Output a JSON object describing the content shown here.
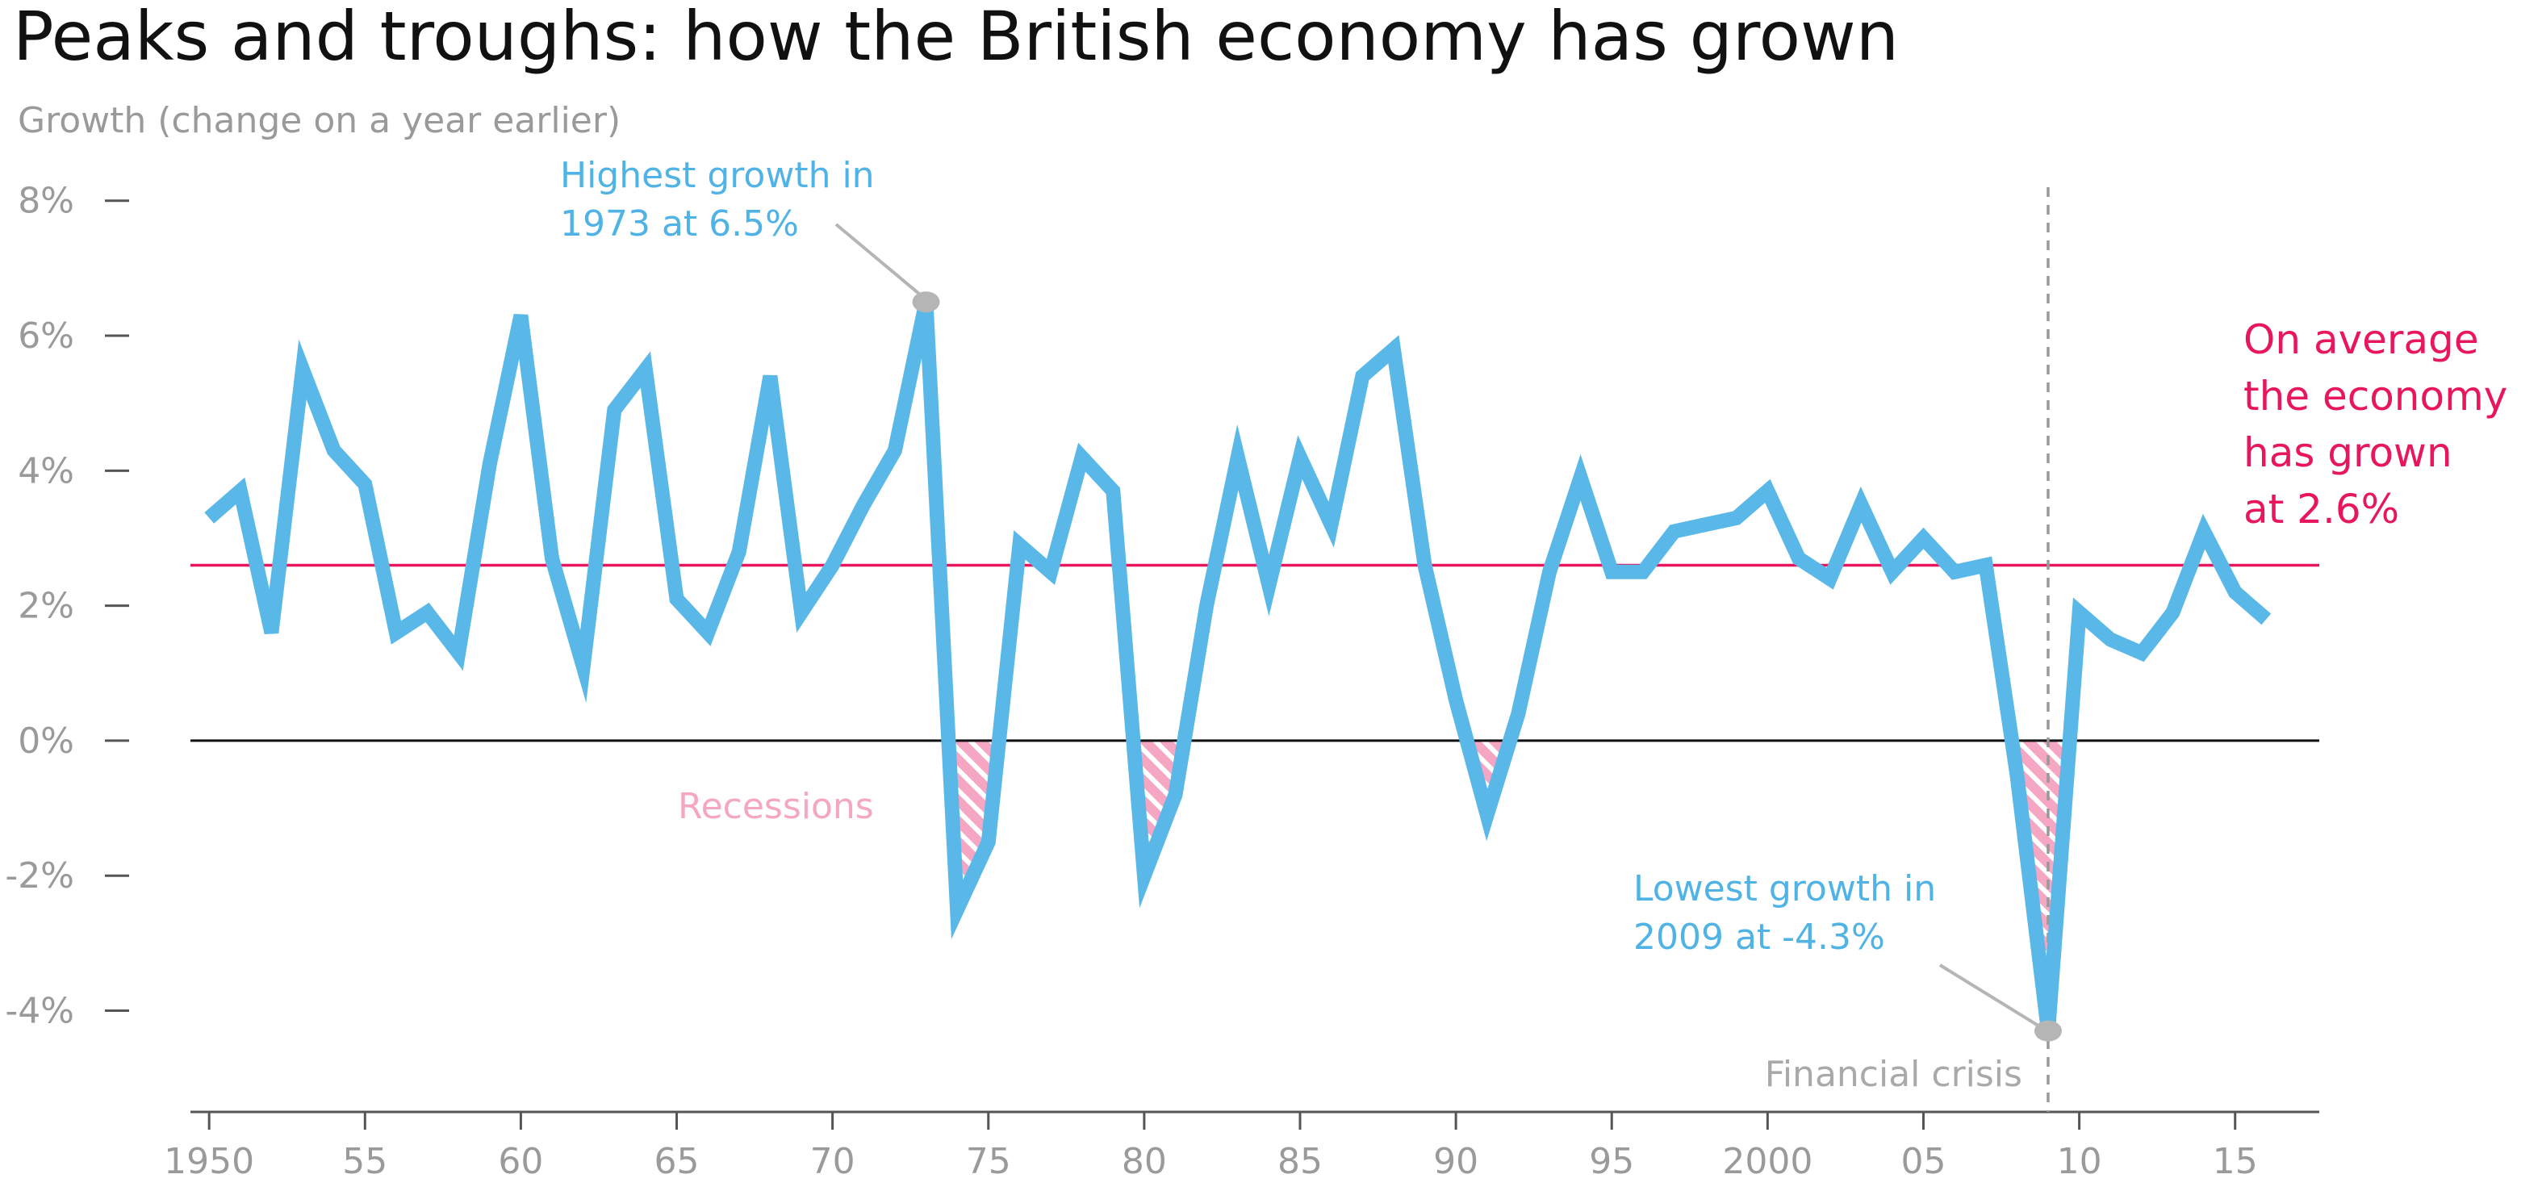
{
  "colors": {
    "series": "#5ab8e8",
    "average": "#e8175d",
    "recession": "#f4a6c3",
    "zero_line": "#111111",
    "axis": "#555555",
    "tick_text": "#9a9a9a",
    "marker": "#b5b5b5",
    "crisis_line": "#999999"
  },
  "chart_data": {
    "type": "line",
    "title": "Peaks and troughs:  how the British economy has grown",
    "subtitle": "Growth (change on a year earlier)",
    "xlabel": "",
    "ylabel": "",
    "xlim": [
      1949.4,
      2017.7
    ],
    "ylim": [
      -5.5,
      8.2
    ],
    "y_ticks": [
      {
        "value": 8,
        "label": "8%"
      },
      {
        "value": 6,
        "label": "6%"
      },
      {
        "value": 4,
        "label": "4%"
      },
      {
        "value": 2,
        "label": "2%"
      },
      {
        "value": 0,
        "label": "0%"
      },
      {
        "value": -2,
        "label": "-2%"
      },
      {
        "value": -4,
        "label": "-4%"
      }
    ],
    "x_ticks": [
      {
        "value": 1950,
        "label": "1950"
      },
      {
        "value": 1955,
        "label": "55"
      },
      {
        "value": 1960,
        "label": "60"
      },
      {
        "value": 1965,
        "label": "65"
      },
      {
        "value": 1970,
        "label": "70"
      },
      {
        "value": 1975,
        "label": "75"
      },
      {
        "value": 1980,
        "label": "80"
      },
      {
        "value": 1985,
        "label": "85"
      },
      {
        "value": 1990,
        "label": "90"
      },
      {
        "value": 1995,
        "label": "95"
      },
      {
        "value": 2000,
        "label": "2000"
      },
      {
        "value": 2005,
        "label": "05"
      },
      {
        "value": 2010,
        "label": "10"
      },
      {
        "value": 2015,
        "label": "15"
      }
    ],
    "series": [
      {
        "x": [
          1950,
          1951,
          1952,
          1953,
          1954,
          1955,
          1956,
          1957,
          1958,
          1959,
          1960,
          1961,
          1962,
          1963,
          1964,
          1965,
          1966,
          1967,
          1968,
          1969,
          1970,
          1971,
          1972,
          1973,
          1974,
          1975,
          1976,
          1977,
          1978,
          1979,
          1980,
          1981,
          1982,
          1983,
          1984,
          1985,
          1986,
          1987,
          1988,
          1989,
          1990,
          1991,
          1992,
          1993,
          1994,
          1995,
          1996,
          1997,
          1998,
          1999,
          2000,
          2001,
          2002,
          2003,
          2004,
          2005,
          2006,
          2007,
          2008,
          2009,
          2010,
          2011,
          2012,
          2013,
          2014,
          2015,
          2016
        ],
        "values": [
          3.3,
          3.7,
          1.6,
          5.5,
          4.3,
          3.8,
          1.6,
          1.9,
          1.3,
          4.1,
          6.3,
          2.7,
          1.1,
          4.9,
          5.5,
          2.1,
          1.6,
          2.8,
          5.4,
          1.9,
          2.6,
          3.5,
          4.3,
          6.5,
          -2.5,
          -1.5,
          2.9,
          2.5,
          4.2,
          3.7,
          -2.0,
          -0.8,
          2.0,
          4.2,
          2.3,
          4.2,
          3.2,
          5.4,
          5.8,
          2.6,
          0.6,
          -1.1,
          0.4,
          2.5,
          3.9,
          2.5,
          2.5,
          3.1,
          3.2,
          3.3,
          3.7,
          2.7,
          2.4,
          3.5,
          2.5,
          3.0,
          2.5,
          2.6,
          -0.5,
          -4.3,
          1.9,
          1.5,
          1.3,
          1.9,
          3.1,
          2.2,
          1.8
        ]
      }
    ],
    "average": {
      "value": 2.6,
      "label": [
        "On average",
        "the economy",
        "has grown",
        "at 2.6%"
      ]
    },
    "recessions": [
      [
        1973.9,
        1975.7
      ],
      [
        1979.5,
        1981.5
      ],
      [
        1990.5,
        1991.8
      ],
      [
        2007.8,
        2009.9
      ]
    ],
    "annotations": {
      "peak": {
        "x": 1973,
        "y": 6.5,
        "lines": [
          "Highest growth in",
          "1973 at 6.5%"
        ]
      },
      "trough": {
        "x": 2009,
        "y": -4.3,
        "lines": [
          "Lowest growth in",
          "2009 at -4.3%"
        ]
      },
      "recessions_label": "Recessions",
      "financial_crisis": {
        "x": 2009,
        "label": "Financial crisis"
      }
    },
    "grid": false,
    "legend": "none"
  }
}
